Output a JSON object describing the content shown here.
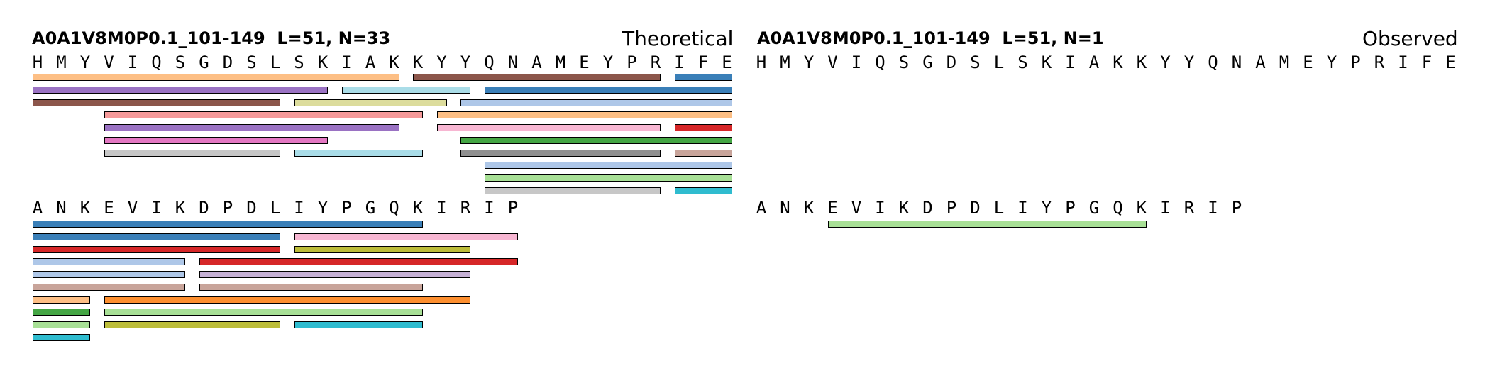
{
  "panels": [
    {
      "id": "theoretical",
      "title": "A0A1V8M0P0.1_101-149  L=51, N=33",
      "label": "Theoretical",
      "rows": [
        {
          "sequence": "HMYVIQSGDSLSKIAKKYYQNAMEYPRIFE",
          "peptides": [
            {
              "start": 0,
              "end": 15,
              "lane": 0,
              "color": "#fdbf85"
            },
            {
              "start": 16,
              "end": 26,
              "lane": 0,
              "color": "#8c564b"
            },
            {
              "start": 27,
              "end": 29,
              "lane": 0,
              "color": "#3a7fb8"
            },
            {
              "start": 0,
              "end": 12,
              "lane": 1,
              "color": "#9a72c3"
            },
            {
              "start": 13,
              "end": 18,
              "lane": 1,
              "color": "#aadde8"
            },
            {
              "start": 19,
              "end": 29,
              "lane": 1,
              "color": "#3a7fb8"
            },
            {
              "start": 0,
              "end": 10,
              "lane": 2,
              "color": "#8c564b"
            },
            {
              "start": 11,
              "end": 17,
              "lane": 2,
              "color": "#dcdc9c"
            },
            {
              "start": 18,
              "end": 29,
              "lane": 2,
              "color": "#aec7e8"
            },
            {
              "start": 3,
              "end": 16,
              "lane": 3,
              "color": "#f59a9a"
            },
            {
              "start": 17,
              "end": 29,
              "lane": 3,
              "color": "#fdbf85"
            },
            {
              "start": 3,
              "end": 15,
              "lane": 4,
              "color": "#9a72c3"
            },
            {
              "start": 17,
              "end": 26,
              "lane": 4,
              "color": "#f7b6d2"
            },
            {
              "start": 27,
              "end": 29,
              "lane": 4,
              "color": "#d62728"
            },
            {
              "start": 3,
              "end": 12,
              "lane": 5,
              "color": "#e377c2"
            },
            {
              "start": 18,
              "end": 29,
              "lane": 5,
              "color": "#44a644"
            },
            {
              "start": 3,
              "end": 10,
              "lane": 6,
              "color": "#c7c7c7"
            },
            {
              "start": 11,
              "end": 16,
              "lane": 6,
              "color": "#aadde8"
            },
            {
              "start": 18,
              "end": 26,
              "lane": 6,
              "color": "#8f8f8f"
            },
            {
              "start": 27,
              "end": 29,
              "lane": 6,
              "color": "#c8a49a"
            },
            {
              "start": 19,
              "end": 29,
              "lane": 7,
              "color": "#aec7e8"
            },
            {
              "start": 19,
              "end": 29,
              "lane": 8,
              "color": "#a8e096"
            },
            {
              "start": 19,
              "end": 26,
              "lane": 9,
              "color": "#c7c7c7"
            },
            {
              "start": 27,
              "end": 29,
              "lane": 9,
              "color": "#2fbccf"
            }
          ]
        },
        {
          "sequence": "ANKEVIKDPDLIYPGQKIRIP",
          "peptides": [
            {
              "start": 0,
              "end": 16,
              "lane": 0,
              "color": "#3a7fb8"
            },
            {
              "start": 0,
              "end": 10,
              "lane": 1,
              "color": "#3a7fb8"
            },
            {
              "start": 11,
              "end": 20,
              "lane": 1,
              "color": "#f7b6d2"
            },
            {
              "start": 0,
              "end": 10,
              "lane": 2,
              "color": "#d62728"
            },
            {
              "start": 11,
              "end": 18,
              "lane": 2,
              "color": "#bcbd3a"
            },
            {
              "start": 0,
              "end": 6,
              "lane": 3,
              "color": "#aec7e8"
            },
            {
              "start": 7,
              "end": 20,
              "lane": 3,
              "color": "#d62728"
            },
            {
              "start": 0,
              "end": 6,
              "lane": 4,
              "color": "#aec7e8"
            },
            {
              "start": 7,
              "end": 18,
              "lane": 4,
              "color": "#c5b0d5"
            },
            {
              "start": 0,
              "end": 6,
              "lane": 5,
              "color": "#c8a49a"
            },
            {
              "start": 7,
              "end": 16,
              "lane": 5,
              "color": "#c8a49a"
            },
            {
              "start": 0,
              "end": 2,
              "lane": 6,
              "color": "#fdbf85"
            },
            {
              "start": 3,
              "end": 18,
              "lane": 6,
              "color": "#fd8f2f"
            },
            {
              "start": 0,
              "end": 2,
              "lane": 7,
              "color": "#44a644"
            },
            {
              "start": 3,
              "end": 16,
              "lane": 7,
              "color": "#a8e096"
            },
            {
              "start": 0,
              "end": 2,
              "lane": 8,
              "color": "#a8e096"
            },
            {
              "start": 3,
              "end": 10,
              "lane": 8,
              "color": "#bcbd3a"
            },
            {
              "start": 11,
              "end": 16,
              "lane": 8,
              "color": "#2fbccf"
            },
            {
              "start": 0,
              "end": 2,
              "lane": 9,
              "color": "#2fbccf"
            }
          ]
        }
      ]
    },
    {
      "id": "observed",
      "title": "A0A1V8M0P0.1_101-149  L=51, N=1",
      "label": "Observed",
      "rows": [
        {
          "sequence": "HMYVIQSGDSLSKIAKKYYQNAMEYPRIFE",
          "peptides": []
        },
        {
          "sequence": "ANKEVIKDPDLIYPGQKIRIP",
          "peptides": [
            {
              "start": 3,
              "end": 16,
              "lane": 0,
              "color": "#a8e096"
            }
          ]
        }
      ]
    }
  ]
}
